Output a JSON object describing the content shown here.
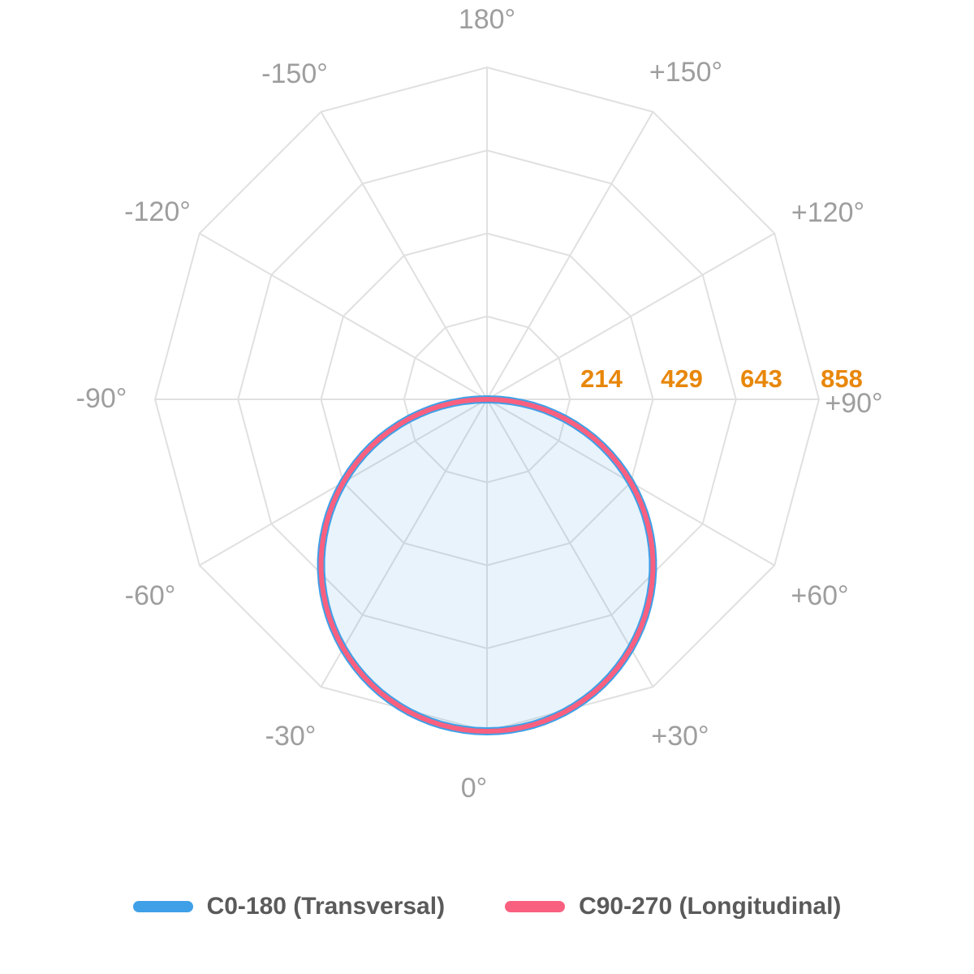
{
  "chart_data": {
    "type": "line",
    "coordinate_system": "polar",
    "description": "Luminous intensity distribution curve (polar photometric diagram)",
    "zero_angle_direction": "down",
    "grid": "polygonal, 12 spokes, 4 rings",
    "angle_axis": {
      "tick_step_deg": 30,
      "labels": [
        "180°",
        "+150°",
        "+120°",
        "+90°",
        "+60°",
        "+30°",
        "0°",
        "-30°",
        "-60°",
        "-90°",
        "-120°",
        "-150°"
      ]
    },
    "radial_axis": {
      "min": 0,
      "max": 858,
      "ticks": [
        214,
        429,
        643,
        858
      ],
      "tick_color": "#e8870a"
    },
    "model": "lambertian: I(gamma) = peak * cos(gamma), gamma in [-90, 90]",
    "x_deg": [
      -90,
      -75,
      -60,
      -45,
      -30,
      -15,
      0,
      15,
      30,
      45,
      60,
      75,
      90
    ],
    "series": [
      {
        "name": "C0-180 (Transversal)",
        "color": "#3fa0e8",
        "fill": "rgba(63,160,232,0.12)",
        "peak": 858,
        "values": [
          0,
          222,
          429,
          607,
          743,
          829,
          858,
          829,
          743,
          607,
          429,
          222,
          0
        ]
      },
      {
        "name": "C90-270 (Longitudinal)",
        "color": "#f9607f",
        "fill": "none",
        "peak": 858,
        "values": [
          0,
          222,
          429,
          607,
          743,
          829,
          858,
          829,
          743,
          607,
          429,
          222,
          0
        ]
      }
    ],
    "legend_position": "bottom"
  },
  "legend": {
    "items": [
      {
        "label": "C0-180 (Transversal)",
        "color": "#3fa0e8"
      },
      {
        "label": "C90-270 (Longitudinal)",
        "color": "#f9607f"
      }
    ]
  },
  "colors": {
    "grid": "#e0e0e0",
    "angle_label": "#9e9e9e",
    "radial_tick": "#e8870a",
    "legend_text": "#5a5a5a",
    "background": "#ffffff"
  }
}
